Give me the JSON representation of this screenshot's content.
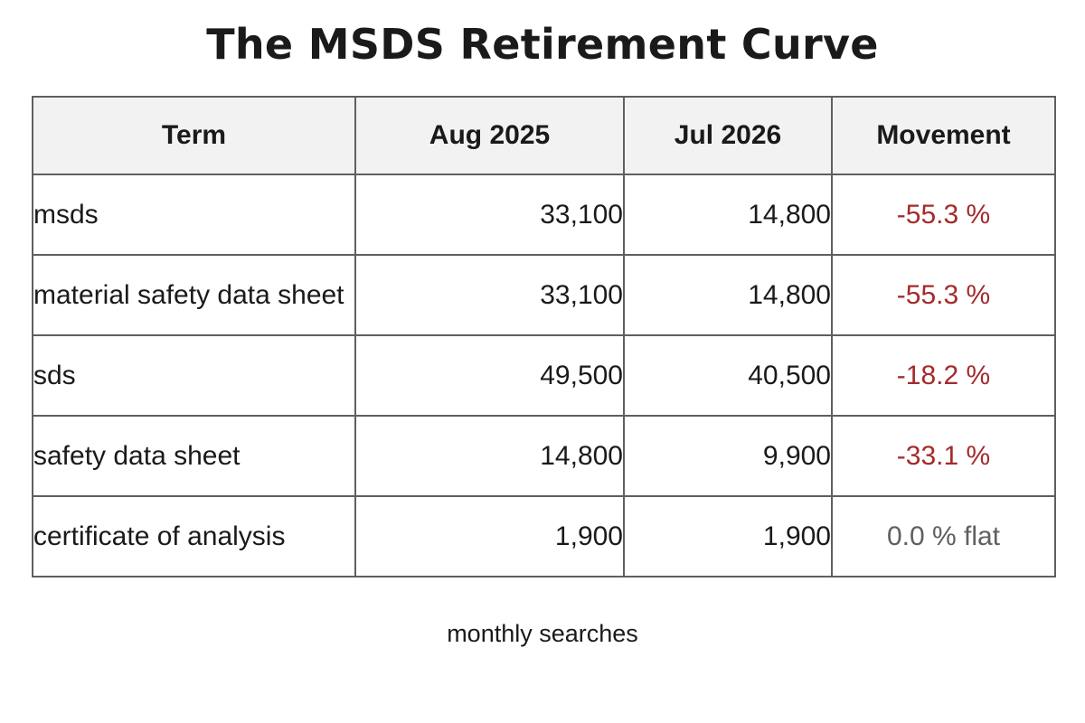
{
  "chart_data": {
    "type": "table",
    "title": "The MSDS Retirement Curve",
    "columns": [
      "Term",
      "Aug 2025",
      "Jul 2026",
      "Movement"
    ],
    "rows": [
      {
        "term": "msds",
        "aug_2025": "33,100",
        "jul_2026": "14,800",
        "movement": "-55.3 %",
        "trend": "down"
      },
      {
        "term": "material safety data sheet",
        "aug_2025": "33,100",
        "jul_2026": "14,800",
        "movement": "-55.3 %",
        "trend": "down"
      },
      {
        "term": "sds",
        "aug_2025": "49,500",
        "jul_2026": "40,500",
        "movement": "-18.2 %",
        "trend": "down"
      },
      {
        "term": "safety data sheet",
        "aug_2025": "14,800",
        "jul_2026": "9,900",
        "movement": "-33.1 %",
        "trend": "down"
      },
      {
        "term": "certificate of analysis",
        "aug_2025": "1,900",
        "jul_2026": "1,900",
        "movement": "0.0 % flat",
        "trend": "flat"
      }
    ],
    "note": "monthly searches"
  },
  "colors": {
    "negative": "#a32b2b",
    "flat": "#5f5f5f",
    "header_background": "#f2f2f2"
  }
}
